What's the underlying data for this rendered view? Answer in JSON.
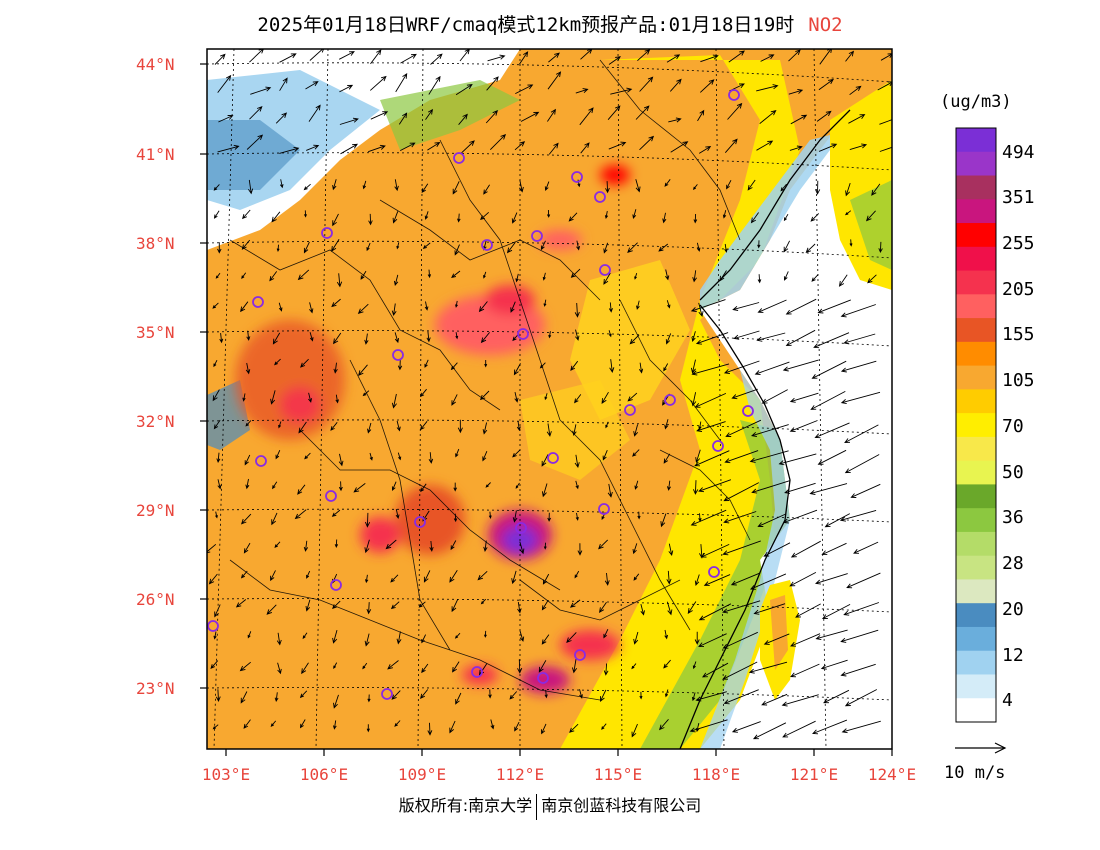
{
  "title": {
    "text": "2025年01月18日WRF/cmaq模式12km预报产品:01月18日19时",
    "pollutant": "NO2"
  },
  "axes": {
    "lat_labels": [
      "44°N",
      "41°N",
      "38°N",
      "35°N",
      "32°N",
      "29°N",
      "26°N",
      "23°N"
    ],
    "lon_labels": [
      "103°E",
      "106°E",
      "109°E",
      "112°E",
      "115°E",
      "118°E",
      "121°E",
      "124°E"
    ],
    "label_color": "#e8453c"
  },
  "colorbar": {
    "unit": "(ug/m3)",
    "labels": [
      "494",
      "351",
      "255",
      "205",
      "155",
      "105",
      "70",
      "50",
      "36",
      "28",
      "20",
      "12",
      "4"
    ],
    "colors": [
      "#7b2fd6",
      "#9a35c9",
      "#a8305f",
      "#c9157e",
      "#ff0000",
      "#f0104a",
      "#f5324e",
      "#ff6060",
      "#e85525",
      "#ff8c00",
      "#f8a830",
      "#ffcc00",
      "#ffee00",
      "#f8e84a",
      "#e8f450",
      "#6aa82a",
      "#8cc840",
      "#b4dc68",
      "#c8e482",
      "#dce8c0",
      "#4a8cc0",
      "#6aaedc",
      "#a0d2f0",
      "#d4ecf8",
      "#ffffff"
    ]
  },
  "vector_scale": {
    "label": "10 m/s"
  },
  "copyright": {
    "prefix": "版权所有:南京大学",
    "org": "南京创蓝科技有限公司"
  },
  "legend_colors": {
    "background": "#f8a830",
    "sea": "#ffffff",
    "marker": "#8a2be2"
  }
}
